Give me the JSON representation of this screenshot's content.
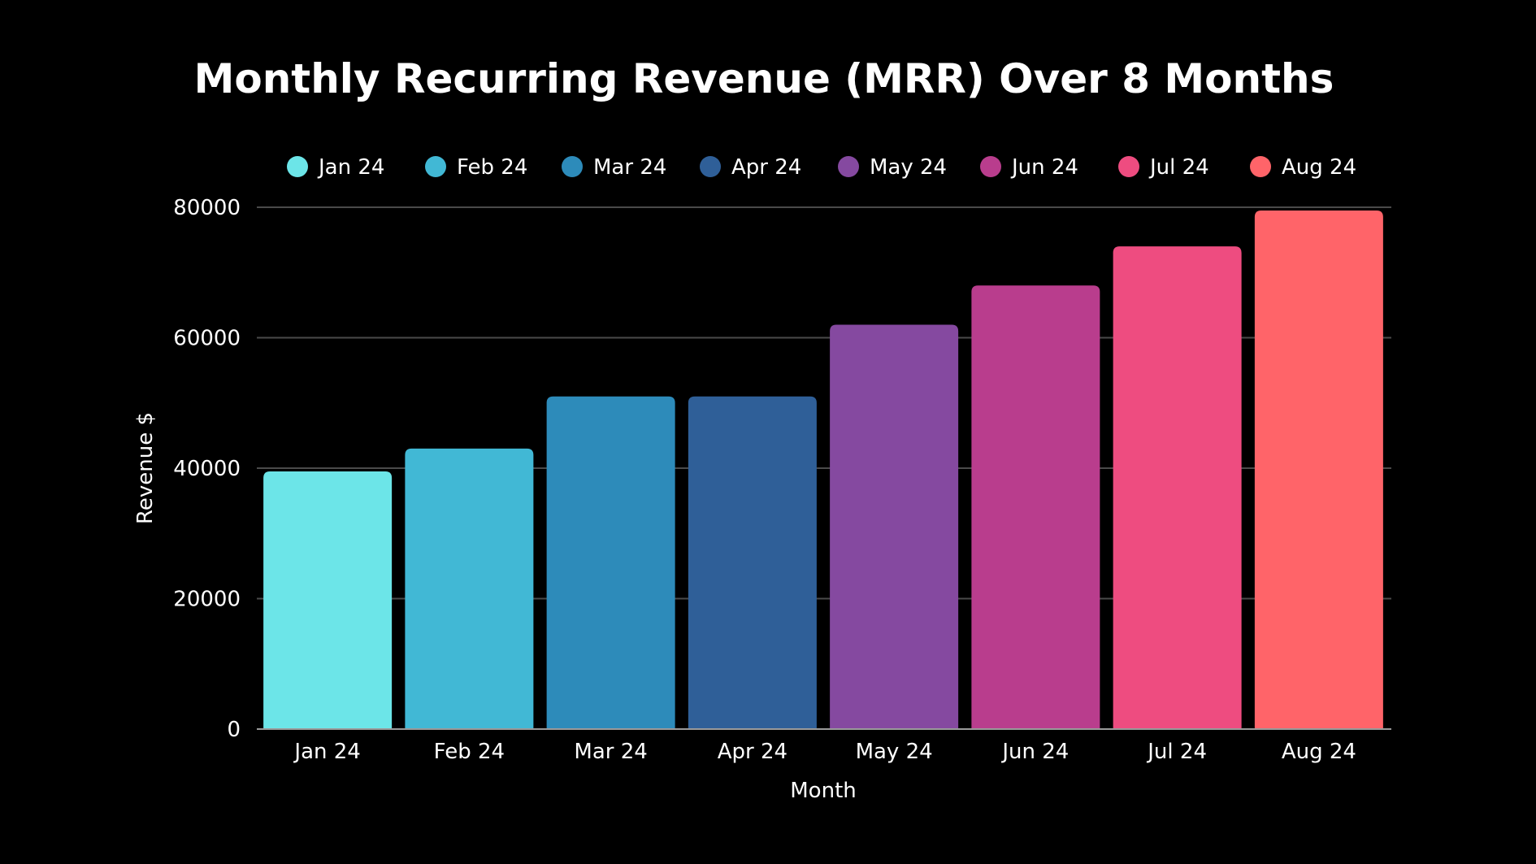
{
  "chart_data": {
    "type": "bar",
    "title": "Monthly Recurring Revenue (MRR) Over 8 Months",
    "xlabel": "Month",
    "ylabel": "Revenue $",
    "categories": [
      "Jan 24",
      "Feb 24",
      "Mar 24",
      "Apr 24",
      "May 24",
      "Jun 24",
      "Jul 24",
      "Aug 24"
    ],
    "values": [
      39500,
      43000,
      51000,
      51000,
      62000,
      68000,
      74000,
      79500
    ],
    "colors": [
      "#6ce5e8",
      "#41b8d5",
      "#2d8bba",
      "#2f5f98",
      "#8549a0",
      "#b93d8d",
      "#ee4c80",
      "#ff6469"
    ],
    "ylim": [
      0,
      80000
    ],
    "yticks": [
      "0",
      "20000",
      "40000",
      "60000",
      "80000"
    ],
    "ytick_values": [
      0,
      20000,
      40000,
      60000,
      80000
    ],
    "legend": {
      "placement": "top",
      "entries": [
        "Jan 24",
        "Feb 24",
        "Mar 24",
        "Apr 24",
        "May 24",
        "Jun 24",
        "Jul 24",
        "Aug 24"
      ]
    },
    "grid": true,
    "gridline_color": "#4a4a4a",
    "background": "#000000"
  }
}
